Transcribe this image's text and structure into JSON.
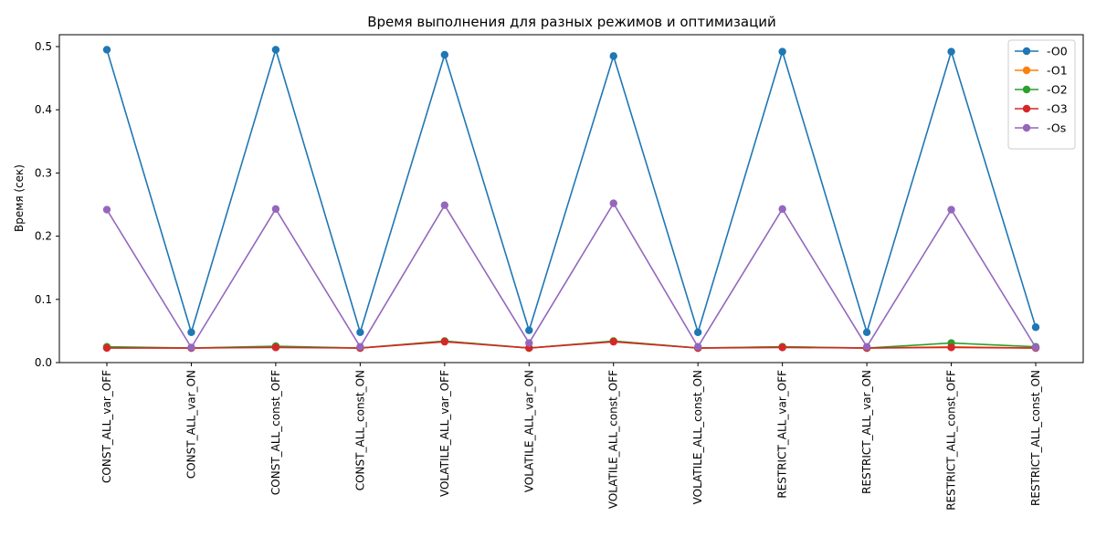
{
  "chart_data": {
    "type": "line",
    "title": "Время выполнения для разных режимов и оптимизаций",
    "xlabel": "",
    "ylabel": "Время (сек)",
    "ylim": [
      0.0,
      0.5
    ],
    "yticks": [
      "0.0",
      "0.1",
      "0.2",
      "0.3",
      "0.4",
      "0.5"
    ],
    "grid": false,
    "legend_position": "top-right",
    "categories": [
      "CONST_ALL_var_OFF",
      "CONST_ALL_var_ON",
      "CONST_ALL_const_OFF",
      "CONST_ALL_const_ON",
      "VOLATILE_ALL_var_OFF",
      "VOLATILE_ALL_var_ON",
      "VOLATILE_ALL_const_OFF",
      "VOLATILE_ALL_const_ON",
      "RESTRICT_ALL_var_OFF",
      "RESTRICT_ALL_var_ON",
      "RESTRICT_ALL_const_OFF",
      "RESTRICT_ALL_const_ON"
    ],
    "series": [
      {
        "name": "-O0",
        "color": "#1f77b4",
        "values": [
          0.495,
          0.048,
          0.495,
          0.048,
          0.487,
          0.051,
          0.485,
          0.048,
          0.492,
          0.048,
          0.492,
          0.056
        ]
      },
      {
        "name": "-O1",
        "color": "#ff7f0e",
        "values": [
          0.024,
          0.023,
          0.025,
          0.023,
          0.034,
          0.023,
          0.034,
          0.023,
          0.025,
          0.023,
          0.025,
          0.023
        ]
      },
      {
        "name": "-O2",
        "color": "#2ca02c",
        "values": [
          0.025,
          0.023,
          0.026,
          0.023,
          0.034,
          0.023,
          0.034,
          0.023,
          0.025,
          0.023,
          0.031,
          0.025
        ]
      },
      {
        "name": "-O3",
        "color": "#d62728",
        "values": [
          0.023,
          0.023,
          0.024,
          0.023,
          0.033,
          0.023,
          0.033,
          0.023,
          0.024,
          0.023,
          0.024,
          0.023
        ]
      },
      {
        "name": "-Os",
        "color": "#9467bd",
        "values": [
          0.242,
          0.024,
          0.243,
          0.025,
          0.249,
          0.031,
          0.252,
          0.025,
          0.243,
          0.025,
          0.242,
          0.024
        ]
      }
    ]
  }
}
